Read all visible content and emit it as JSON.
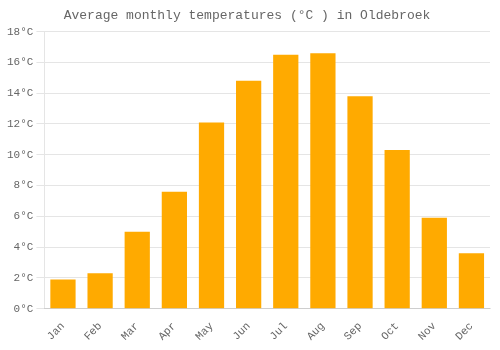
{
  "chart_data": {
    "type": "bar",
    "title": "Average monthly temperatures (°C ) in Oldebroek",
    "categories": [
      "Jan",
      "Feb",
      "Mar",
      "Apr",
      "May",
      "Jun",
      "Jul",
      "Aug",
      "Sep",
      "Oct",
      "Nov",
      "Dec"
    ],
    "values": [
      1.9,
      2.3,
      5.0,
      7.6,
      12.1,
      14.8,
      16.5,
      16.6,
      13.8,
      10.3,
      5.9,
      3.6
    ],
    "color": "#FFAA00",
    "ylim": [
      0,
      18
    ],
    "yticks": [
      {
        "value": 0,
        "label": "0°C"
      },
      {
        "value": 2,
        "label": "2°C"
      },
      {
        "value": 4,
        "label": "4°C"
      },
      {
        "value": 6,
        "label": "6°C"
      },
      {
        "value": 8,
        "label": "8°C"
      },
      {
        "value": 10,
        "label": "10°C"
      },
      {
        "value": 12,
        "label": "12°C"
      },
      {
        "value": 14,
        "label": "14°C"
      },
      {
        "value": 16,
        "label": "16°C"
      },
      {
        "value": 18,
        "label": "18°C"
      }
    ],
    "grid": true
  }
}
